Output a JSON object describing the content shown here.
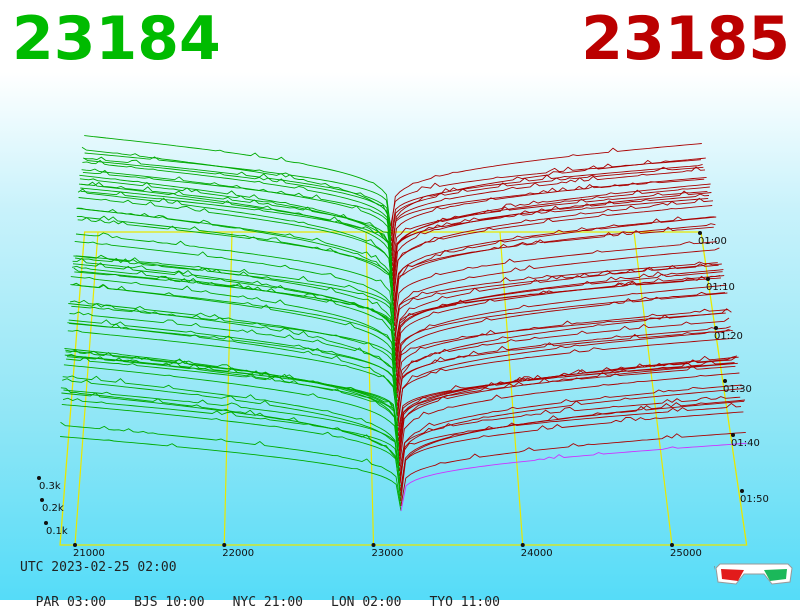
{
  "header": {
    "bid_price": "23184",
    "ask_price": "23185",
    "bid_color": "#00bb00",
    "ask_color": "#bb0000"
  },
  "footer": {
    "utc": "UTC 2023-02-25 02:00",
    "zones": [
      "PAR 03:00",
      "BJS 10:00",
      "NYC 21:00",
      "LON 02:00",
      "TYO 11:00"
    ]
  },
  "icons": {
    "glasses": "3d-glasses-icon"
  },
  "chart_data": {
    "type": "area",
    "price_ticks": [
      "21000",
      "22000",
      "23000",
      "24000",
      "25000"
    ],
    "price_range": [
      20900,
      25400
    ],
    "volume_ticks": [
      "0.1k",
      "0.2k",
      "0.3k"
    ],
    "time_ticks": [
      "01:00",
      "01:10",
      "01:20",
      "01:30",
      "01:40",
      "01:50"
    ],
    "mid_price": 23184.5,
    "grid": true,
    "bid_color": "#00aa00",
    "ask_color": "#aa0000",
    "latest_ask_color": "#cc33ff",
    "frame_color": "#e8e800"
  }
}
